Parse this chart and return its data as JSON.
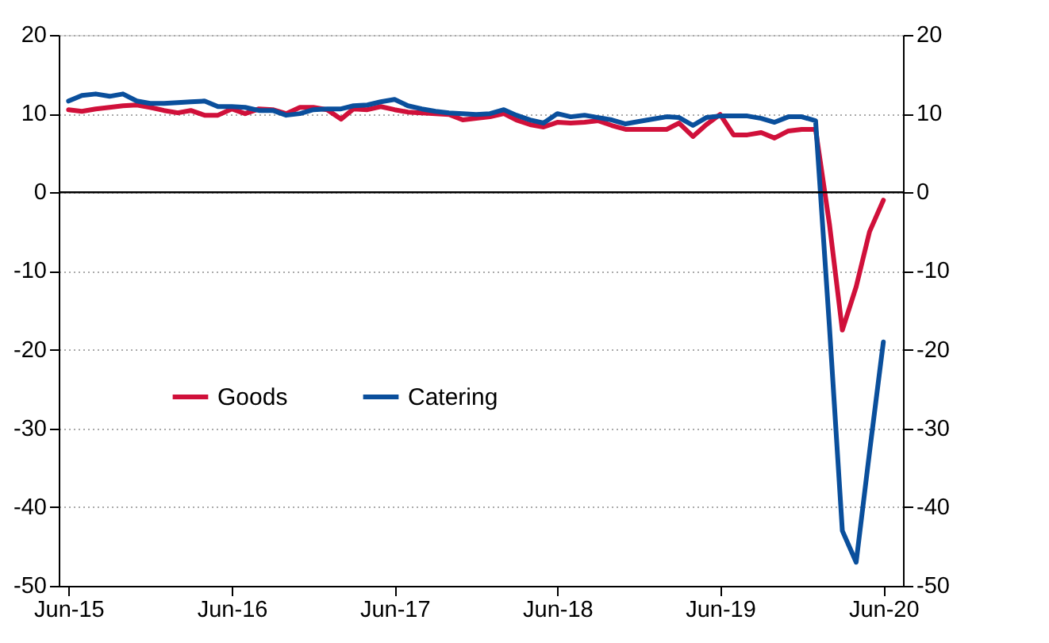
{
  "chart_data": {
    "type": "line",
    "x": [
      "2015-06",
      "2015-07",
      "2015-08",
      "2015-09",
      "2015-10",
      "2015-11",
      "2015-12",
      "2016-01",
      "2016-02",
      "2016-03",
      "2016-04",
      "2016-05",
      "2016-06",
      "2016-07",
      "2016-08",
      "2016-09",
      "2016-10",
      "2016-11",
      "2016-12",
      "2017-01",
      "2017-02",
      "2017-03",
      "2017-04",
      "2017-05",
      "2017-06",
      "2017-07",
      "2017-08",
      "2017-09",
      "2017-10",
      "2017-11",
      "2017-12",
      "2018-01",
      "2018-02",
      "2018-03",
      "2018-04",
      "2018-05",
      "2018-06",
      "2018-07",
      "2018-08",
      "2018-09",
      "2018-10",
      "2018-11",
      "2018-12",
      "2019-01",
      "2019-02",
      "2019-03",
      "2019-04",
      "2019-05",
      "2019-06",
      "2019-07",
      "2019-08",
      "2019-09",
      "2019-10",
      "2019-11",
      "2019-12",
      "2020-01",
      "2020-02",
      "2020-03",
      "2020-04",
      "2020-05",
      "2020-06"
    ],
    "series": [
      {
        "name": "Goods",
        "color": "#d0103a",
        "values": [
          10.5,
          10.3,
          10.6,
          10.8,
          11.0,
          11.1,
          10.8,
          10.4,
          10.1,
          10.4,
          9.8,
          9.8,
          10.6,
          10.0,
          10.6,
          10.5,
          10.0,
          10.8,
          10.8,
          10.5,
          9.3,
          10.6,
          10.5,
          10.9,
          10.5,
          10.2,
          10.1,
          10.0,
          9.9,
          9.2,
          9.4,
          9.6,
          10.0,
          9.2,
          8.6,
          8.3,
          8.9,
          8.8,
          8.9,
          9.1,
          8.5,
          8.0,
          8.0,
          8.0,
          8.0,
          8.8,
          7.1,
          8.6,
          9.9,
          7.3,
          7.3,
          7.6,
          6.9,
          7.8,
          8.0,
          8.0,
          -4,
          -17.5,
          -12,
          -5,
          -1
        ]
      },
      {
        "name": "Catering",
        "color": "#0a4f9c",
        "values": [
          11.6,
          12.3,
          12.5,
          12.2,
          12.5,
          11.6,
          11.3,
          11.3,
          11.4,
          11.5,
          11.6,
          10.9,
          10.9,
          10.8,
          10.4,
          10.4,
          9.8,
          10.0,
          10.5,
          10.6,
          10.6,
          11.0,
          11.1,
          11.5,
          11.8,
          11.0,
          10.6,
          10.3,
          10.1,
          10.0,
          9.9,
          10.0,
          10.5,
          9.8,
          9.2,
          8.8,
          10.0,
          9.6,
          9.8,
          9.5,
          9.2,
          8.7,
          9.0,
          9.3,
          9.6,
          9.5,
          8.5,
          9.5,
          9.7,
          9.7,
          9.7,
          9.4,
          8.9,
          9.6,
          9.6,
          9.1,
          -17,
          -43,
          -47,
          -33,
          -19
        ]
      }
    ],
    "xlim": [
      "2015-05-10",
      "2020-07-15"
    ],
    "xticks": [
      {
        "value": "2015-06",
        "label": "Jun-15"
      },
      {
        "value": "2016-06",
        "label": "Jun-16"
      },
      {
        "value": "2017-06",
        "label": "Jun-17"
      },
      {
        "value": "2018-06",
        "label": "Jun-18"
      },
      {
        "value": "2019-06",
        "label": "Jun-19"
      },
      {
        "value": "2020-06",
        "label": "Jun-20"
      }
    ],
    "ylim": [
      -50,
      20
    ],
    "yticks": [
      -50,
      -40,
      -30,
      -20,
      -10,
      0,
      10,
      20
    ],
    "y2lim": [
      -50,
      20
    ],
    "y2ticks": [
      -50,
      -40,
      -30,
      -20,
      -10,
      0,
      10,
      20
    ],
    "ref_lines": [
      {
        "axis": "y",
        "value": 0,
        "color": "#000000",
        "line_style": "solid"
      }
    ],
    "grid": "y",
    "legend": "center left",
    "marker": "none",
    "line_style": "solid"
  }
}
